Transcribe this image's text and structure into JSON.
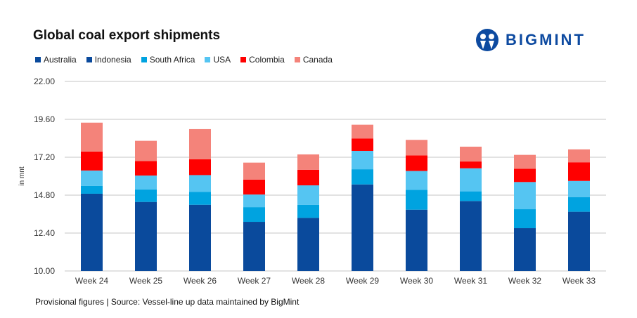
{
  "chart_data": {
    "type": "bar",
    "stacked": true,
    "title": "Global coal export shipments",
    "ylabel": "in mnt",
    "xlabel": "",
    "ylim": [
      10,
      22
    ],
    "yticks": [
      "10.00",
      "12.40",
      "14.80",
      "17.20",
      "19.60",
      "22.00"
    ],
    "grid": true,
    "legend_position": "top-left",
    "categories": [
      "Week 24",
      "Week 25",
      "Week 26",
      "Week 27",
      "Week 28",
      "Week 29",
      "Week 30",
      "Week 31",
      "Week 32",
      "Week 33"
    ],
    "series": [
      {
        "name": "Australia",
        "color": "#0a4a9c",
        "values": [
          null,
          null,
          null,
          null,
          null,
          null,
          null,
          null,
          null,
          null
        ]
      },
      {
        "name": "Indonesia",
        "color": "#0a4a9c",
        "values": [
          4.89,
          4.37,
          4.19,
          3.11,
          3.36,
          5.48,
          3.88,
          4.43,
          2.71,
          3.75
        ]
      },
      {
        "name": "South Africa",
        "color": "#00a3e0",
        "values": [
          0.5,
          0.79,
          0.81,
          0.93,
          0.82,
          0.96,
          1.26,
          0.61,
          1.2,
          0.93
        ]
      },
      {
        "name": "USA",
        "color": "#55c5f2",
        "values": [
          0.97,
          0.88,
          1.07,
          0.8,
          1.24,
          1.16,
          1.19,
          1.46,
          1.72,
          1.02
        ]
      },
      {
        "name": "Colombia",
        "color": "#ff0000",
        "values": [
          1.2,
          0.92,
          1.0,
          0.94,
          0.99,
          0.79,
          0.99,
          0.43,
          0.84,
          1.18
        ]
      },
      {
        "name": "Canada",
        "color": "#f4837a",
        "values": [
          1.83,
          1.28,
          1.91,
          1.08,
          0.97,
          0.87,
          0.98,
          0.94,
          0.88,
          0.82
        ]
      }
    ]
  },
  "logo": {
    "text": "BIGMINT"
  },
  "footer": "Provisional figures | Source: Vessel-line up data maintained by BigMint"
}
